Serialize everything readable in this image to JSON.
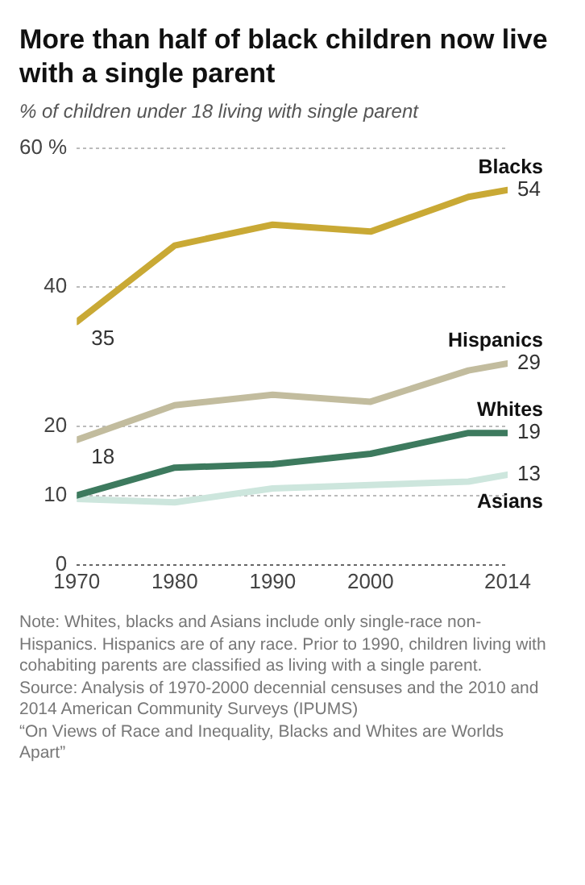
{
  "chart_data": {
    "type": "line",
    "title": "More than half of black children now live with a single parent",
    "subtitle": "% of children under 18 living with single parent",
    "x": [
      1970,
      1980,
      1990,
      2000,
      2010,
      2014
    ],
    "series": [
      {
        "name": "Blacks",
        "color": "#c9a935",
        "values": [
          35,
          46,
          49,
          48,
          53,
          54
        ],
        "value_labels": [
          "35",
          null,
          null,
          null,
          null,
          "54"
        ]
      },
      {
        "name": "Hispanics",
        "color": "#c2bc9e",
        "values": [
          18,
          23,
          24.5,
          23.5,
          28,
          29
        ],
        "value_labels": [
          "18",
          null,
          null,
          null,
          null,
          "29"
        ]
      },
      {
        "name": "Whites",
        "color": "#3d7a5e",
        "values": [
          10,
          14,
          14.5,
          16,
          19,
          19
        ],
        "value_labels": [
          null,
          null,
          null,
          null,
          null,
          "19"
        ]
      },
      {
        "name": "Asians",
        "color": "#cde6dd",
        "values": [
          9.5,
          9,
          11,
          11.5,
          12,
          13
        ],
        "value_labels": [
          null,
          null,
          null,
          null,
          null,
          "13"
        ]
      }
    ],
    "xlim": [
      1970,
      2014
    ],
    "xticks": [
      1970,
      1980,
      1990,
      2000,
      2014
    ],
    "ylim": [
      0,
      60
    ],
    "yticks": [
      0,
      10,
      20,
      40,
      {
        "value": 60,
        "label": "60 %"
      }
    ],
    "grid": "y",
    "legend": false,
    "marker": "none",
    "line_style": "solid",
    "annotations": [
      "Note: Whites, blacks and Asians include only single-race non-Hispanics. Hispanics are of any race. Prior to 1990, children living with cohabiting parents are classified as living with a single parent.",
      "Source: Analysis of 1970-2000 decennial censuses and the 2010 and 2014 American Community Surveys (IPUMS)",
      "“On Views of Race and Inequality, Blacks and Whites are Worlds Apart”"
    ]
  }
}
